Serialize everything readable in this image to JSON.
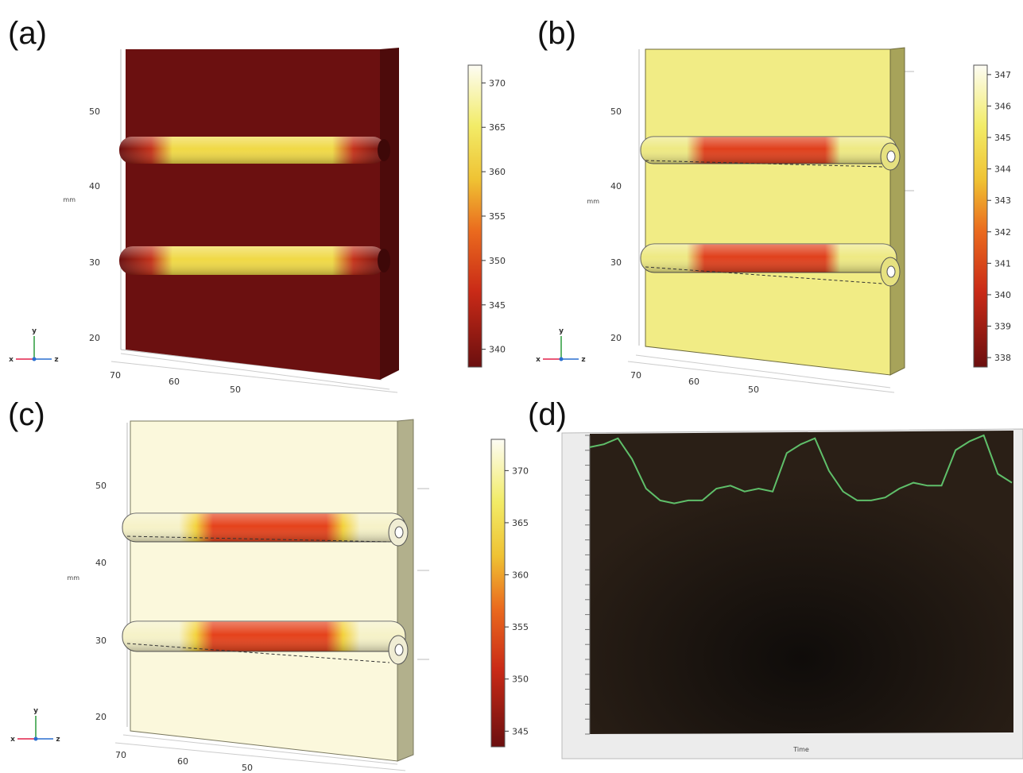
{
  "panels": [
    {
      "id": "a",
      "label": "(a)",
      "y_ticks": [
        "50",
        "40",
        "30",
        "20"
      ],
      "x_ticks": [
        "70",
        "60",
        "50"
      ],
      "unit": "mm",
      "colorbar_ticks": [
        "370",
        "365",
        "360",
        "355",
        "350",
        "345",
        "340"
      ],
      "colorbar_range": [
        338,
        372
      ]
    },
    {
      "id": "b",
      "label": "(b)",
      "y_ticks": [
        "50",
        "40",
        "30",
        "20"
      ],
      "x_ticks": [
        "70",
        "60",
        "50"
      ],
      "unit": "mm",
      "colorbar_ticks": [
        "347",
        "346",
        "345",
        "344",
        "343",
        "342",
        "341",
        "340",
        "339",
        "338"
      ],
      "colorbar_range": [
        337.7,
        347.3
      ]
    },
    {
      "id": "c",
      "label": "(c)",
      "y_ticks": [
        "50",
        "40",
        "30",
        "20"
      ],
      "x_ticks": [
        "70",
        "60",
        "50"
      ],
      "unit": "mm",
      "colorbar_ticks": [
        "370",
        "365",
        "360",
        "355",
        "350",
        "345"
      ],
      "colorbar_range": [
        343.5,
        373
      ]
    },
    {
      "id": "d",
      "label": "(d)",
      "xlabel": "Time",
      "colors": {
        "background": "#1c140f",
        "trace": "#5fbf6a",
        "frame": "#ececec"
      },
      "trace": [
        97,
        98,
        100,
        93,
        83,
        79,
        78,
        79,
        79,
        83,
        84,
        82,
        83,
        82,
        95,
        98,
        100,
        89,
        82,
        79,
        79,
        80,
        83,
        85,
        84,
        84,
        96,
        99,
        101,
        88,
        85
      ]
    }
  ],
  "axis_triad": {
    "x": "x",
    "y": "y",
    "z": "z"
  },
  "colors": {
    "dark_red": "#6b1010",
    "pale_yellow": "#f1ec85",
    "cream": "#fbf8dc",
    "hot_yellow": "#f3ec56",
    "hot_red": "#e23b18"
  }
}
